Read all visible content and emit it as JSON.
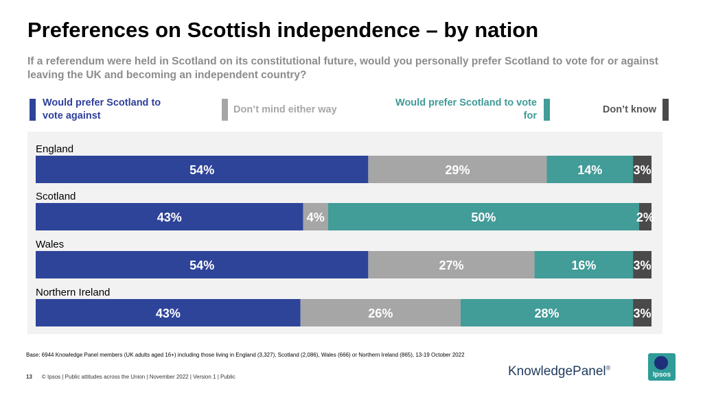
{
  "header": {
    "title": "Preferences on Scottish independence – by nation",
    "subtitle": "If a referendum were held in Scotland on its constitutional future, would you personally prefer Scotland to vote for or against leaving the UK and becoming an independent country?"
  },
  "legend": {
    "against": "Would prefer Scotland to vote against",
    "dont_mind": "Don’t mind either way",
    "for": "Would prefer Scotland to vote for",
    "dont_know": "Don’t know"
  },
  "colors": {
    "against": "#2e4499",
    "dont_mind": "#a6a6a6",
    "for": "#429c98",
    "dont_know": "#4a4a4a"
  },
  "chart_data": {
    "type": "bar",
    "orientation": "horizontal",
    "stacked": true,
    "categories": [
      "England",
      "Scotland",
      "Wales",
      "Northern Ireland"
    ],
    "series": [
      {
        "name": "Would prefer Scotland to vote against",
        "values": [
          54,
          43,
          54,
          43
        ]
      },
      {
        "name": "Don’t mind either way",
        "values": [
          29,
          4,
          27,
          26
        ]
      },
      {
        "name": "Would prefer Scotland to vote for",
        "values": [
          14,
          50,
          16,
          28
        ]
      },
      {
        "name": "Don’t know",
        "values": [
          3,
          2,
          3,
          3
        ]
      }
    ],
    "value_suffix": "%",
    "legend_position": "top",
    "grid": false
  },
  "footnote": "Base: 6944 Knowledge Panel members (UK adults aged 16+) including those living in England (3,327), Scotland (2,086), Wales (666) or Northern Ireland (865), 13-19 October 2022",
  "footer": {
    "page": "13",
    "text": "© Ipsos | Public attitudes across the Union | November 2022 | Version 1 | Public"
  },
  "logos": {
    "knowledge_panel": "KnowledgePanel",
    "registered": "®",
    "ipsos": "Ipsos"
  }
}
